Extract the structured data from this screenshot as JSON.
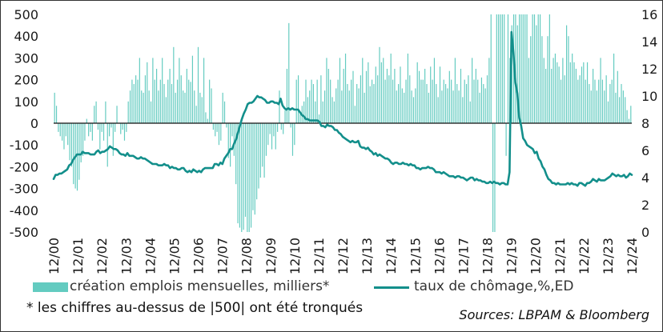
{
  "chart_data": {
    "type": "bar+line",
    "title": "",
    "x_tick_labels": [
      "12/00",
      "12/01",
      "12/02",
      "12/03",
      "12/04",
      "12/05",
      "12/06",
      "12/07",
      "12/08",
      "12/09",
      "12/10",
      "12/11",
      "12/12",
      "12/13",
      "12/14",
      "12/15",
      "12/16",
      "12/17",
      "12/18",
      "12/19",
      "12/20",
      "12/21",
      "12/22",
      "12/23",
      "12/24"
    ],
    "x_start": "2000-12",
    "x_end": "2024-12",
    "left_axis": {
      "min": -500,
      "max": 500,
      "ticks": [
        "500",
        "400",
        "300",
        "200",
        "100",
        "0",
        "-100",
        "-200",
        "-300",
        "-400",
        "-500"
      ]
    },
    "right_axis": {
      "min": 0,
      "max": 16,
      "ticks": [
        "16",
        "14",
        "12",
        "10",
        "8",
        "6",
        "4",
        "2",
        "0"
      ]
    },
    "series": [
      {
        "name": "création emplois mensuelles, milliers*",
        "type": "bar",
        "axis": "left",
        "color": "#63cbc0",
        "note": "monthly job creation, thousands; values beyond |500| truncated",
        "values": [
          140,
          80,
          -40,
          -60,
          -80,
          -120,
          -60,
          -100,
          -170,
          -200,
          -280,
          -300,
          -310,
          -260,
          -180,
          -150,
          -80,
          20,
          -60,
          -40,
          -80,
          80,
          100,
          -30,
          -120,
          -40,
          -80,
          100,
          -200,
          -60,
          -20,
          -150,
          -40,
          80,
          0,
          -50,
          -30,
          -80,
          -40,
          100,
          150,
          200,
          180,
          220,
          200,
          300,
          150,
          140,
          220,
          280,
          150,
          100,
          300,
          200,
          250,
          150,
          200,
          300,
          180,
          120,
          200,
          250,
          180,
          350,
          140,
          200,
          300,
          220,
          150,
          140,
          250,
          200,
          190,
          310,
          150,
          80,
          350,
          140,
          120,
          300,
          50,
          20,
          200,
          160,
          -30,
          -60,
          -40,
          -100,
          -80,
          140,
          100,
          -20,
          -160,
          -200,
          -60,
          -150,
          -280,
          -460,
          -480,
          -500,
          -490,
          -430,
          -500,
          -500,
          -480,
          -400,
          -420,
          -350,
          -300,
          -250,
          -200,
          -250,
          -150,
          -100,
          -50,
          -120,
          -60,
          -120,
          -40,
          150,
          -30,
          -50,
          60,
          250,
          460,
          -20,
          -150,
          -100,
          200,
          220,
          40,
          80,
          100,
          200,
          120,
          150,
          200,
          180,
          100,
          200,
          40,
          220,
          100,
          150,
          300,
          250,
          200,
          120,
          100,
          160,
          200,
          300,
          150,
          250,
          320,
          180,
          150,
          200,
          240,
          80,
          180,
          160,
          220,
          300,
          140,
          240,
          280,
          170,
          200,
          180,
          260,
          220,
          350,
          280,
          300,
          200,
          250,
          220,
          320,
          200,
          250,
          150,
          180,
          260,
          160,
          140,
          200,
          320,
          220,
          150,
          120,
          160,
          280,
          240,
          200,
          200,
          250,
          180,
          140,
          260,
          200,
          300,
          180,
          120,
          260,
          150,
          200,
          180,
          160,
          240,
          200,
          150,
          300,
          180,
          150,
          250,
          120,
          200,
          180,
          220,
          100,
          300,
          200,
          250,
          200,
          140,
          210,
          180,
          160,
          220,
          300,
          500,
          -500,
          -500,
          500,
          500,
          500,
          500,
          500,
          -150,
          500,
          300,
          450,
          500,
          500,
          450,
          500,
          500,
          500,
          500,
          500,
          300,
          400,
          500,
          500,
          450,
          500,
          500,
          400,
          300,
          250,
          400,
          500,
          250,
          300,
          320,
          280,
          260,
          200,
          300,
          220,
          450,
          400,
          280,
          320,
          280,
          250,
          200,
          220,
          260,
          280,
          200,
          280,
          180,
          150,
          250,
          200,
          150,
          200,
          300,
          200,
          150,
          220,
          100,
          180,
          200,
          320,
          140,
          240,
          120,
          180,
          150,
          120,
          60,
          20,
          80
        ]
      },
      {
        "name": "taux de chômage,%,ED",
        "type": "line",
        "axis": "right",
        "color": "#138f8b",
        "values": [
          3.9,
          4.2,
          4.2,
          4.3,
          4.3,
          4.4,
          4.5,
          4.6,
          4.9,
          5.0,
          5.3,
          5.5,
          5.7,
          5.7,
          5.7,
          5.9,
          5.8,
          5.8,
          5.8,
          5.7,
          5.7,
          5.7,
          5.9,
          6.0,
          5.8,
          5.9,
          5.9,
          6.0,
          6.1,
          6.3,
          6.2,
          6.1,
          6.1,
          6.0,
          5.8,
          5.7,
          5.7,
          5.6,
          5.8,
          5.6,
          5.6,
          5.6,
          5.5,
          5.4,
          5.4,
          5.5,
          5.4,
          5.4,
          5.3,
          5.2,
          5.1,
          5.0,
          5.0,
          5.0,
          4.9,
          4.9,
          4.9,
          5.0,
          4.9,
          4.9,
          4.7,
          4.8,
          4.7,
          4.7,
          4.6,
          4.6,
          4.7,
          4.7,
          4.5,
          4.4,
          4.5,
          4.4,
          4.6,
          4.5,
          4.4,
          4.5,
          4.4,
          4.6,
          4.7,
          4.7,
          4.7,
          4.7,
          4.7,
          5.0,
          5.0,
          4.9,
          5.1,
          5.0,
          5.4,
          5.6,
          5.8,
          6.1,
          6.1,
          6.5,
          6.8,
          7.3,
          7.8,
          8.3,
          8.7,
          9.0,
          9.4,
          9.5,
          9.5,
          9.6,
          9.8,
          10.0,
          9.9,
          9.9,
          9.8,
          9.7,
          9.5,
          9.5,
          9.6,
          9.6,
          9.5,
          9.5,
          9.4,
          9.8,
          9.3,
          9.1,
          9.0,
          9.1,
          9.0,
          9.1,
          9.0,
          9.0,
          9.0,
          8.8,
          8.6,
          8.5,
          8.3,
          8.3,
          8.2,
          8.2,
          8.2,
          8.2,
          8.2,
          8.1,
          7.8,
          7.8,
          7.7,
          7.9,
          7.8,
          7.8,
          7.7,
          7.5,
          7.5,
          7.3,
          7.2,
          7.0,
          6.9,
          6.8,
          6.7,
          6.6,
          6.7,
          6.6,
          6.6,
          6.7,
          6.3,
          6.2,
          6.2,
          6.1,
          6.2,
          6.0,
          5.9,
          5.7,
          5.8,
          5.6,
          5.7,
          5.6,
          5.5,
          5.4,
          5.4,
          5.3,
          5.1,
          5.0,
          5.1,
          5.1,
          5.0,
          5.0,
          5.1,
          5.0,
          5.0,
          4.9,
          5.0,
          4.9,
          4.9,
          4.7,
          4.7,
          4.6,
          4.7,
          4.7,
          4.7,
          4.8,
          4.7,
          4.7,
          4.6,
          4.4,
          4.4,
          4.4,
          4.3,
          4.4,
          4.3,
          4.2,
          4.1,
          4.1,
          4.1,
          4.0,
          4.1,
          4.1,
          4.0,
          4.0,
          3.9,
          3.8,
          3.9,
          4.0,
          4.0,
          3.8,
          3.9,
          3.8,
          3.8,
          3.7,
          3.7,
          3.6,
          3.6,
          3.7,
          3.6,
          3.7,
          3.6,
          3.6,
          3.5,
          3.6,
          3.6,
          3.5,
          3.5,
          4.4,
          14.7,
          13.2,
          11.0,
          10.2,
          8.4,
          7.8,
          6.9,
          6.7,
          6.4,
          6.3,
          6.2,
          6.1,
          5.8,
          5.9,
          5.4,
          5.2,
          4.8,
          4.6,
          4.2,
          3.9,
          3.8,
          3.6,
          3.6,
          3.5,
          3.6,
          3.5,
          3.5,
          3.5,
          3.5,
          3.6,
          3.5,
          3.6,
          3.5,
          3.5,
          3.4,
          3.6,
          3.6,
          3.5,
          3.4,
          3.6,
          3.6,
          3.7,
          3.9,
          3.8,
          3.7,
          3.9,
          3.8,
          3.8,
          3.8,
          3.9,
          4.0,
          4.1,
          4.3,
          4.2,
          4.1,
          4.2,
          4.1,
          4.1,
          4.2,
          4.0,
          4.1,
          4.3,
          4.2
        ]
      }
    ],
    "legend": [
      "création emplois mensuelles, milliers*",
      "taux de chômage,%,ED"
    ]
  },
  "footnote": "* les chiffres au-dessus de |500| ont été tronqués",
  "source": "Sources: LBPAM & Bloomberg",
  "colors": {
    "bars": "#63cbc0",
    "line": "#138f8b",
    "zero_line": "#111111"
  }
}
